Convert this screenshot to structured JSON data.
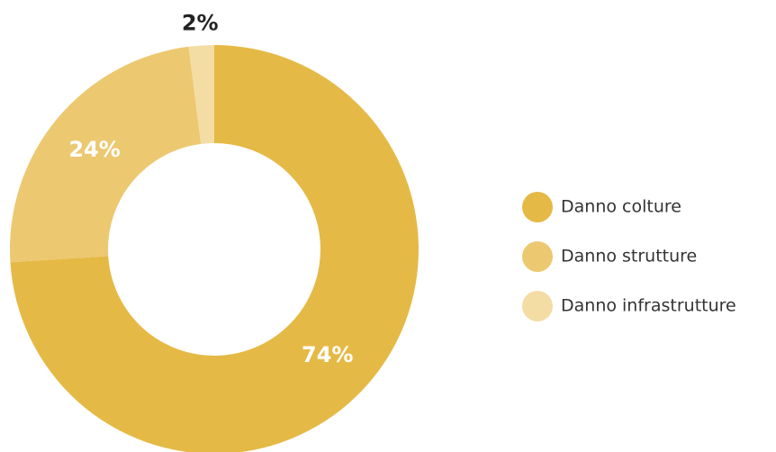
{
  "chart_data": {
    "type": "pie",
    "categories": [
      "Danno colture",
      "Danno strutture",
      "Danno infrastrutture"
    ],
    "values": [
      74,
      24,
      2
    ],
    "value_labels": [
      "74%",
      "24%",
      "2%"
    ],
    "colors": [
      "#e5b945",
      "#ecc870",
      "#f3dda4"
    ],
    "donut": true,
    "legend": "right"
  }
}
